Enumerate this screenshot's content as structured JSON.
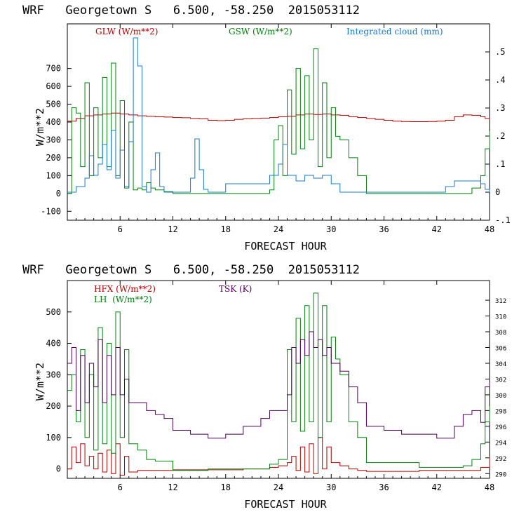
{
  "chart_data": [
    {
      "type": "line",
      "title": "WRF   Georgetown S   6.500, -58.250  2015053112",
      "xlabel": "FORECAST HOUR",
      "ylabel": "W/m**2",
      "xlim": [
        0,
        48
      ],
      "ylim": [
        -150,
        950
      ],
      "y2lim": [
        -0.1,
        0.6
      ],
      "x_ticks": [
        6,
        12,
        18,
        24,
        30,
        36,
        42,
        48
      ],
      "y_ticks": [
        -100,
        0,
        100,
        200,
        300,
        400,
        500,
        600,
        700
      ],
      "y2_ticks": [
        -0.1,
        0,
        0.1,
        0.2,
        0.3,
        0.4,
        0.5
      ],
      "y2_tick_labels": [
        "-.1",
        "0",
        ".1",
        ".2",
        ".3",
        ".4",
        ".5"
      ],
      "series": [
        {
          "name": "GLW (W/m**2)",
          "color": "#b00000",
          "axis": "left",
          "x": [
            0,
            1,
            2,
            3,
            4,
            5,
            6,
            7,
            8,
            9,
            10,
            11,
            12,
            13,
            14,
            15,
            16,
            17,
            18,
            19,
            20,
            21,
            22,
            23,
            24,
            25,
            26,
            27,
            28,
            29,
            30,
            31,
            32,
            33,
            34,
            35,
            36,
            37,
            38,
            39,
            40,
            41,
            42,
            43,
            44,
            45,
            46,
            47,
            47.5,
            48
          ],
          "values": [
            405,
            420,
            435,
            440,
            445,
            450,
            445,
            440,
            435,
            432,
            430,
            428,
            425,
            424,
            420,
            418,
            410,
            408,
            410,
            415,
            418,
            420,
            422,
            425,
            430,
            432,
            440,
            445,
            442,
            445,
            440,
            438,
            430,
            425,
            420,
            415,
            410,
            405,
            403,
            402,
            402,
            403,
            405,
            410,
            430,
            440,
            438,
            430,
            420,
            415
          ]
        },
        {
          "name": "GSW (W/m**2)",
          "color": "#00800c",
          "axis": "left",
          "x": [
            0,
            0.5,
            1,
            1.5,
            2,
            2.5,
            3,
            3.5,
            4,
            4.5,
            5,
            5.5,
            6,
            6.5,
            7,
            7.5,
            8,
            8.5,
            9,
            9.5,
            10,
            11,
            12,
            14,
            16,
            18,
            20,
            22,
            23,
            23.5,
            24,
            24.5,
            25,
            25.5,
            26,
            26.5,
            27,
            27.5,
            28,
            28.5,
            29,
            29.5,
            30,
            30.5,
            31,
            32,
            33,
            34,
            36,
            40,
            44,
            45,
            46,
            47,
            47.5,
            48
          ],
          "values": [
            0,
            480,
            450,
            150,
            620,
            100,
            480,
            200,
            650,
            150,
            730,
            100,
            520,
            30,
            400,
            20,
            30,
            20,
            60,
            30,
            20,
            10,
            0,
            0,
            0,
            0,
            0,
            0,
            20,
            300,
            380,
            100,
            580,
            220,
            700,
            250,
            660,
            300,
            810,
            150,
            620,
            200,
            480,
            320,
            300,
            200,
            100,
            0,
            0,
            0,
            0,
            0,
            30,
            100,
            250,
            350
          ]
        },
        {
          "name": "Integrated cloud (mm)",
          "color": "#1878d0",
          "axis": "right",
          "x": [
            0,
            1,
            2,
            2.5,
            3,
            3.5,
            4,
            4.5,
            5,
            5.5,
            6,
            6.5,
            7,
            7.5,
            8,
            8.5,
            9,
            9.5,
            10,
            10.5,
            11,
            12,
            13,
            14,
            14.5,
            15,
            15.5,
            16,
            17,
            18,
            20,
            22,
            23,
            24,
            24.5,
            25,
            26,
            27,
            28,
            29,
            30,
            31,
            32,
            36,
            40,
            42,
            43,
            44,
            45,
            46,
            47,
            47.5,
            48
          ],
          "values": [
            0,
            0.02,
            0.05,
            0.13,
            0.06,
            0.1,
            0.17,
            0.08,
            0.22,
            0.05,
            0.15,
            0.02,
            0.18,
            0.55,
            0.45,
            0.02,
            0,
            0.08,
            0.14,
            0.02,
            0,
            0,
            0,
            0.05,
            0.19,
            0.08,
            0.01,
            0,
            0,
            0.03,
            0.03,
            0.03,
            0.06,
            0.1,
            0.17,
            0.06,
            0.04,
            0.06,
            0.05,
            0.06,
            0.03,
            0,
            0,
            0,
            0,
            0,
            0.02,
            0.04,
            0.04,
            0.04,
            0.03,
            0.01,
            0
          ]
        }
      ],
      "legend": [
        {
          "label": "GLW (W/m**2)",
          "color": "#b00000"
        },
        {
          "label": "GSW (W/m**2)",
          "color": "#00800c"
        },
        {
          "label": "Integrated cloud (mm)",
          "color": "#1878d0"
        }
      ]
    },
    {
      "type": "line",
      "title": "WRF   Georgetown S   6.500, -58.250  2015053112",
      "xlabel": "FORECAST HOUR",
      "ylabel": "W/m**2",
      "xlim": [
        0,
        48
      ],
      "ylim": [
        -30,
        600
      ],
      "y2lim": [
        289.4,
        314.5
      ],
      "x_ticks": [
        6,
        12,
        18,
        24,
        30,
        36,
        42,
        48
      ],
      "y_ticks": [
        0,
        100,
        200,
        300,
        400,
        500
      ],
      "y2_ticks": [
        290,
        292,
        294,
        296,
        298,
        300,
        302,
        304,
        306,
        308,
        310,
        312
      ],
      "y2_tick_labels": [
        "290",
        "292",
        "294",
        "296",
        "298",
        "300",
        "302",
        "304",
        "306",
        "308",
        "310",
        "312"
      ],
      "series": [
        {
          "name": "HFX (W/m**2)",
          "color": "#b00000",
          "axis": "left",
          "x": [
            0,
            0.5,
            1,
            1.5,
            2,
            2.5,
            3,
            3.5,
            4,
            4.5,
            5,
            5.5,
            6,
            6.5,
            7,
            8,
            9,
            10,
            12,
            16,
            20,
            23,
            24,
            25,
            25.5,
            26,
            26.5,
            27,
            27.5,
            28,
            28.5,
            29,
            29.5,
            30,
            31,
            32,
            33,
            34,
            40,
            45,
            46,
            47,
            48
          ],
          "values": [
            0,
            70,
            20,
            80,
            10,
            40,
            0,
            50,
            -10,
            60,
            -15,
            80,
            -20,
            40,
            -10,
            -5,
            -5,
            -5,
            -3,
            -3,
            0,
            5,
            10,
            20,
            40,
            -5,
            70,
            -10,
            80,
            -15,
            100,
            0,
            70,
            20,
            10,
            0,
            -5,
            -8,
            -5,
            -5,
            -5,
            5,
            40
          ]
        },
        {
          "name": "LH (W/m**2)",
          "color": "#00800c",
          "axis": "left",
          "x": [
            0,
            0.5,
            1,
            1.5,
            2,
            2.5,
            3,
            3.5,
            4,
            4.5,
            5,
            5.5,
            6,
            6.5,
            7,
            8,
            9,
            10,
            12,
            16,
            20,
            23,
            24,
            25,
            25.5,
            26,
            26.5,
            27,
            27.5,
            28,
            28.5,
            29,
            29.5,
            30,
            30.5,
            31,
            32,
            33,
            34,
            40,
            44,
            45,
            46,
            47,
            47.5,
            48
          ],
          "values": [
            250,
            300,
            150,
            380,
            100,
            300,
            60,
            450,
            80,
            400,
            50,
            500,
            100,
            380,
            80,
            60,
            30,
            25,
            -5,
            0,
            0,
            15,
            30,
            380,
            150,
            480,
            120,
            520,
            150,
            560,
            100,
            520,
            150,
            420,
            350,
            300,
            150,
            100,
            20,
            5,
            5,
            10,
            30,
            80,
            150,
            200
          ]
        },
        {
          "name": "TSK (K)",
          "color": "#4b0055",
          "axis": "right",
          "x": [
            0,
            0.5,
            1,
            1.5,
            2,
            2.5,
            3,
            3.5,
            4,
            4.5,
            5,
            5.5,
            6,
            6.5,
            7,
            8,
            9,
            10,
            11,
            12,
            14,
            16,
            18,
            20,
            22,
            23,
            24,
            25,
            25.5,
            26,
            26.5,
            27,
            27.5,
            28,
            28.5,
            29,
            29.5,
            30,
            30.5,
            31,
            32,
            33,
            34,
            36,
            38,
            40,
            42,
            44,
            45,
            46,
            47,
            47.5,
            48
          ],
          "values": [
            304,
            306,
            298,
            305,
            299,
            304,
            301,
            307,
            299,
            305,
            300,
            306,
            300,
            302,
            299,
            299,
            298,
            297.5,
            297,
            295.5,
            295,
            294.5,
            295,
            296,
            297,
            298,
            298,
            300,
            306,
            304,
            307,
            305,
            308,
            306,
            307,
            305,
            306,
            304,
            304,
            303,
            301,
            299,
            296,
            295.5,
            295,
            295,
            294.5,
            296,
            297.5,
            298,
            296.5,
            301,
            301.5
          ]
        }
      ],
      "legend": [
        {
          "label": "HFX (W/m**2)",
          "color": "#b00000"
        },
        {
          "label": "LH  (W/m**2)",
          "color": "#00800c"
        },
        {
          "label": "TSK (K)",
          "color": "#4b0055"
        }
      ]
    }
  ]
}
